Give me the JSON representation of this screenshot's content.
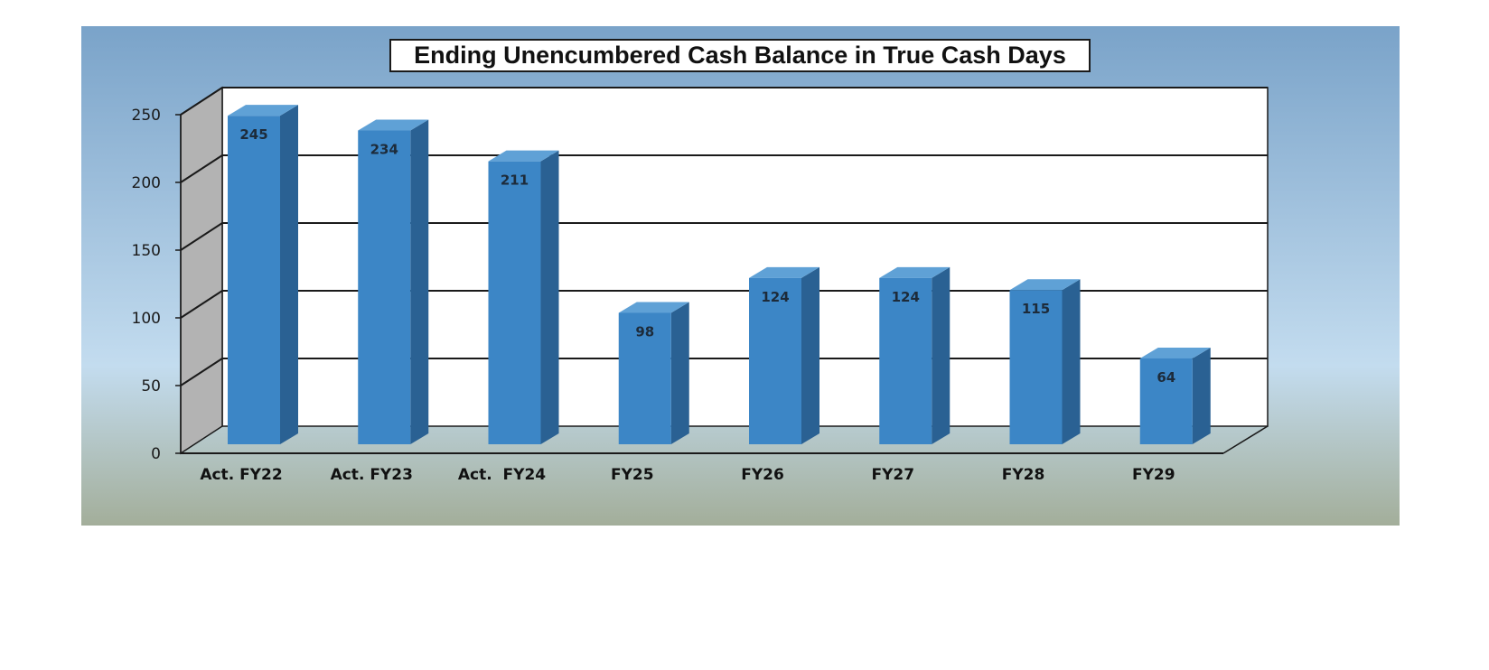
{
  "chart_data": {
    "type": "bar",
    "title": "Ending Unencumbered Cash Balance in True Cash Days",
    "xlabel": "",
    "ylabel": "",
    "categories": [
      "Act. FY22",
      "Act. FY23",
      "Act.  FY24",
      "FY25",
      "FY26",
      "FY27",
      "FY28",
      "FY29"
    ],
    "values": [
      245,
      234,
      211,
      98,
      124,
      124,
      115,
      64
    ],
    "data_labels": [
      "245",
      "234",
      "211",
      "98",
      "124",
      "124",
      "115",
      "64"
    ],
    "ylim": [
      0,
      250
    ],
    "yticks": [
      0,
      50,
      100,
      150,
      200,
      250
    ],
    "ytick_labels": [
      "0",
      "50",
      "100",
      "150",
      "200",
      "250"
    ],
    "grid": true,
    "legend": "none",
    "style": "3d-column",
    "colors": {
      "bar_front": "#3c86c6",
      "bar_side": "#2a6193",
      "bar_top": "#5fa1d6",
      "panel_top": "#7aa3c9",
      "panel_mid": "#c3dcef",
      "panel_bottom": "#a3ae9a",
      "back_wall": "#ffffff",
      "side_wall": "#b3b3b3"
    }
  }
}
